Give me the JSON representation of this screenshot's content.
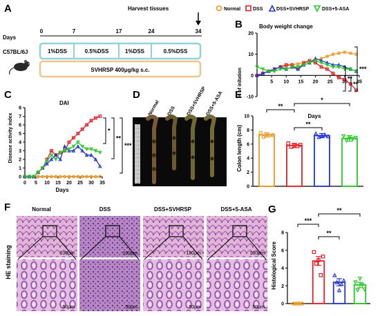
{
  "panels": [
    "A",
    "B",
    "C",
    "D",
    "E",
    "F",
    "G"
  ],
  "colors": {
    "normal": "#f0961e",
    "dss": "#ee1c24",
    "svhrsp": "#2233dd",
    "asa": "#22cc22",
    "timeline_box": "#8fd3d6",
    "timeline_box2": "#f3c48a",
    "tissue_pink": "#d7a6cc",
    "tissue_purple": "#8a5aa6"
  },
  "legend": {
    "items": [
      {
        "label": "Normal",
        "marker": "circle",
        "color": "#f0961e"
      },
      {
        "label": "DSS",
        "marker": "square",
        "color": "#ee1c24"
      },
      {
        "label": "DSS+SVHRSP",
        "marker": "triangle-up",
        "color": "#2233dd"
      },
      {
        "label": "DSS+5-ASA",
        "marker": "triangle-down",
        "color": "#22cc22"
      }
    ]
  },
  "timeline": {
    "days_label": "Days",
    "days": [
      "0",
      "7",
      "17",
      "24",
      "34"
    ],
    "strain": "C57BL/6J",
    "harvest": "Harvest tissues",
    "dss_phases": [
      "1%DSS",
      "0.5%DSS",
      "1%DSS",
      "0.5%DSS"
    ],
    "treatment": "SVHRSP 400μg/kg s.c."
  },
  "photo": {
    "labels": [
      "Normal",
      "DSS",
      "DSS+SVHRSP",
      "DSS+5-ASA"
    ]
  },
  "histology": {
    "titles": [
      "Normal",
      "DSS",
      "DSS+SVHRSP",
      "DSS+5-ASA"
    ],
    "row_label": "HE staining",
    "scale_top": "100μm",
    "scale_bottom": "50μm"
  },
  "chart_data": [
    {
      "panel": "B",
      "type": "line",
      "title": "Body weight change",
      "xlabel": "Days",
      "ylabel": "% of inltation",
      "xlim": [
        0,
        35
      ],
      "ylim": [
        -10,
        20
      ],
      "xticks": [
        5,
        10,
        15,
        20,
        25,
        30,
        35
      ],
      "yticks": [
        -10,
        0,
        10,
        20
      ],
      "series": [
        {
          "name": "Normal",
          "x": [
            0,
            2,
            4,
            6,
            8,
            10,
            12,
            14,
            16,
            18,
            20,
            22,
            24,
            26,
            28,
            30,
            32,
            34
          ],
          "values": [
            0,
            1,
            2,
            3,
            4,
            4.5,
            5,
            5.5,
            6,
            6.5,
            7,
            8,
            9,
            10,
            10.5,
            11,
            10.5,
            10
          ]
        },
        {
          "name": "DSS",
          "x": [
            0,
            2,
            4,
            6,
            8,
            10,
            12,
            14,
            16,
            18,
            20,
            22,
            24,
            26,
            28,
            30,
            32,
            34
          ],
          "values": [
            0,
            1,
            2,
            3,
            4,
            5,
            5,
            3,
            6,
            7,
            6,
            4,
            3,
            1,
            -1,
            -2,
            -4,
            -7
          ]
        },
        {
          "name": "DSS+SVHRSP",
          "x": [
            0,
            2,
            4,
            6,
            8,
            10,
            12,
            14,
            16,
            18,
            20,
            22,
            24,
            26,
            28,
            30,
            32,
            34
          ],
          "values": [
            0,
            1,
            2,
            3,
            4,
            3,
            4,
            3,
            5,
            6,
            8,
            7,
            6,
            5,
            5,
            4,
            3,
            2
          ]
        },
        {
          "name": "DSS+5-ASA",
          "x": [
            0,
            2,
            4,
            6,
            8,
            10,
            12,
            14,
            16,
            18,
            20,
            22,
            24,
            26,
            28,
            30,
            32,
            34
          ],
          "values": [
            4,
            3,
            2,
            2,
            3,
            3,
            4,
            4,
            5,
            6,
            7,
            6,
            5,
            4,
            4,
            3,
            3,
            2
          ]
        }
      ],
      "significance": [
        "***",
        "**",
        "**"
      ]
    },
    {
      "panel": "C",
      "type": "line",
      "title": "DAI",
      "xlabel": "Days",
      "ylabel": "Disease activity index",
      "xlim": [
        0,
        35
      ],
      "ylim": [
        0,
        8
      ],
      "xticks": [
        0,
        5,
        10,
        15,
        20,
        25,
        30,
        35
      ],
      "yticks": [
        0,
        1,
        2,
        3,
        4,
        5,
        6,
        7,
        8
      ],
      "series": [
        {
          "name": "Normal",
          "x": [
            0,
            2,
            4,
            6,
            8,
            10,
            12,
            14,
            16,
            18,
            20,
            22,
            24,
            26,
            28,
            30,
            32,
            34
          ],
          "values": [
            0,
            0,
            0,
            0,
            0,
            0,
            0,
            0,
            0,
            0,
            0,
            0,
            0,
            0,
            0,
            0,
            0,
            0
          ]
        },
        {
          "name": "DSS",
          "x": [
            0,
            2,
            4,
            6,
            8,
            10,
            12,
            14,
            16,
            18,
            20,
            22,
            24,
            26,
            28,
            30,
            32,
            34
          ],
          "values": [
            0,
            0,
            0,
            0.5,
            1,
            2,
            3,
            2.5,
            2.8,
            3,
            4,
            4.5,
            5,
            5.5,
            6,
            6.5,
            6.8,
            7
          ]
        },
        {
          "name": "DSS+SVHRSP",
          "x": [
            0,
            2,
            4,
            6,
            8,
            10,
            12,
            14,
            16,
            18,
            20,
            22,
            24,
            26,
            28,
            30,
            32,
            34
          ],
          "values": [
            0,
            0,
            0,
            0.5,
            1,
            1.5,
            2,
            2.5,
            2,
            3.5,
            3,
            3,
            3.5,
            3,
            2.5,
            2.5,
            2,
            1.2
          ]
        },
        {
          "name": "DSS+5-ASA",
          "x": [
            0,
            2,
            4,
            6,
            8,
            10,
            12,
            14,
            16,
            18,
            20,
            22,
            24,
            26,
            28,
            30,
            32,
            34
          ],
          "values": [
            0,
            0,
            0,
            0.5,
            1,
            1.8,
            2.5,
            2,
            2.8,
            3,
            3.2,
            3.5,
            4,
            3.5,
            3.2,
            3.2,
            3,
            2.8
          ]
        }
      ],
      "significance": [
        "*",
        "**",
        "***"
      ]
    },
    {
      "panel": "E",
      "type": "bar",
      "xlabel": "",
      "ylabel": "Colon length (cm)",
      "ylim": [
        0,
        10
      ],
      "yticks": [
        0,
        2,
        4,
        6,
        8,
        10
      ],
      "categories": [
        "Normal",
        "DSS",
        "DSS+SVHRSP",
        "DSS+5-ASA"
      ],
      "values": [
        7.3,
        5.8,
        7.2,
        6.8
      ],
      "errors": [
        0.3,
        0.3,
        0.3,
        0.4
      ],
      "points": [
        [
          7.6,
          7.0,
          7.4,
          7.2,
          7.3
        ],
        [
          6.1,
          5.6,
          5.8,
          5.7,
          5.9
        ],
        [
          7.5,
          7.0,
          7.2,
          7.3,
          7.1
        ],
        [
          7.1,
          6.5,
          6.8,
          6.7,
          6.9
        ]
      ],
      "significance": [
        {
          "pair": [
            0,
            1
          ],
          "label": "**"
        },
        {
          "pair": [
            1,
            2
          ],
          "label": "**"
        },
        {
          "pair": [
            1,
            3
          ],
          "label": "*"
        }
      ]
    },
    {
      "panel": "G",
      "type": "bar",
      "xlabel": "",
      "ylabel": "Histological Score",
      "ylim": [
        0,
        8
      ],
      "yticks": [
        0,
        2,
        4,
        6,
        8
      ],
      "categories": [
        "Normal",
        "DSS",
        "DSS+SVHRSP",
        "DSS+5-ASA"
      ],
      "values": [
        0,
        4.8,
        2.4,
        2.1
      ],
      "errors": [
        0.05,
        0.5,
        0.4,
        0.3
      ],
      "points": [
        [
          0,
          0,
          0,
          0,
          0
        ],
        [
          5.8,
          4.5,
          4.9,
          3.2,
          5.3
        ],
        [
          3.2,
          2.4,
          1.5,
          2.2,
          2.6
        ],
        [
          2.4,
          1.5,
          2.8,
          2.1,
          1.6
        ]
      ],
      "significance": [
        {
          "pair": [
            0,
            1
          ],
          "label": "***"
        },
        {
          "pair": [
            1,
            2
          ],
          "label": "**"
        },
        {
          "pair": [
            1,
            3
          ],
          "label": "**"
        }
      ]
    }
  ]
}
